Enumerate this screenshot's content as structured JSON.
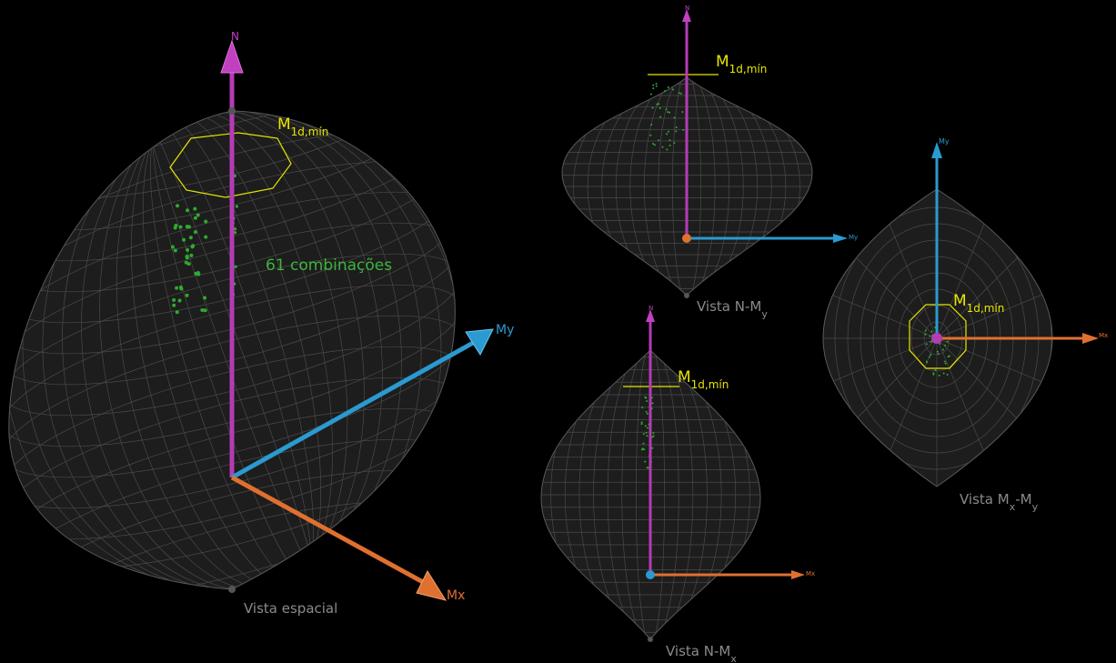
{
  "main_view": {
    "caption": "Vista espacial",
    "annotation": "61 combinações"
  },
  "axes": {
    "N": "N",
    "My": "My",
    "Mx": "Mx"
  },
  "limit_label": {
    "main": "M",
    "sub": "1d,mín"
  },
  "views": [
    {
      "caption": [
        "Vista N-M",
        "y"
      ]
    },
    {
      "caption": [
        "Vista N-M",
        "x"
      ]
    },
    {
      "caption": [
        "Vista M",
        "x",
        "-M",
        "y"
      ]
    }
  ]
}
